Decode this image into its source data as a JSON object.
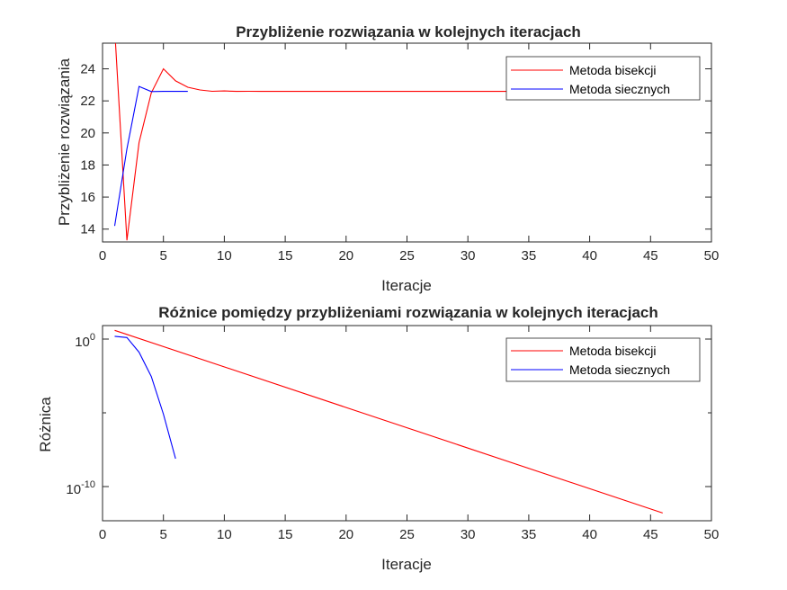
{
  "chart_data": [
    {
      "type": "line",
      "title": "Przybliżenie rozwiązania w kolejnych iteracjach",
      "xlabel": "Iteracje",
      "ylabel": "Przybliżenie rozwiązania",
      "xlim": [
        0,
        50
      ],
      "ylim": [
        13.2,
        25.6
      ],
      "yscale": "linear",
      "xticks": [
        "0",
        "5",
        "10",
        "15",
        "20",
        "25",
        "30",
        "35",
        "40",
        "45",
        "50"
      ],
      "yticks": [
        "14",
        "16",
        "18",
        "20",
        "22",
        "24"
      ],
      "grid": false,
      "legend_position": "top-right",
      "series": [
        {
          "name": "Metoda bisekcji",
          "color": "#ff0000",
          "x": [
            1,
            2,
            3,
            4,
            5,
            6,
            7,
            8,
            9,
            10,
            11,
            12,
            13,
            14,
            15,
            16,
            17,
            18,
            19,
            20,
            21,
            22,
            23,
            24,
            25,
            26,
            27,
            28,
            29,
            30,
            31,
            32,
            33,
            34,
            35,
            36,
            37,
            38,
            39,
            40,
            41,
            42,
            43,
            44,
            45,
            46
          ],
          "y": [
            26.5,
            13.3,
            19.4,
            22.5,
            24.0,
            23.25,
            22.85,
            22.68,
            22.6,
            22.62,
            22.59,
            22.6,
            22.59,
            22.59,
            22.59,
            22.59,
            22.59,
            22.59,
            22.59,
            22.59,
            22.59,
            22.59,
            22.59,
            22.59,
            22.59,
            22.59,
            22.59,
            22.59,
            22.59,
            22.59,
            22.59,
            22.59,
            22.59,
            22.59,
            22.59,
            22.59,
            22.59,
            22.59,
            22.59,
            22.59,
            22.59,
            22.59,
            22.59,
            22.59,
            22.59,
            22.59
          ]
        },
        {
          "name": "Metoda siecznych",
          "color": "#0000ff",
          "x": [
            1,
            2,
            3,
            4,
            5,
            6,
            7
          ],
          "y": [
            14.2,
            19.0,
            22.9,
            22.58,
            22.59,
            22.59,
            22.59
          ]
        }
      ]
    },
    {
      "type": "line",
      "title": "Różnice pomiędzy przybliżeniami rozwiązania w kolejnych iteracjach",
      "xlabel": "Iteracje",
      "ylabel": "Różnica",
      "xlim": [
        0,
        50
      ],
      "ylim": [
        1e-13,
        30
      ],
      "yscale": "log",
      "xticks": [
        "0",
        "5",
        "10",
        "15",
        "20",
        "25",
        "30",
        "35",
        "40",
        "45",
        "50"
      ],
      "grid": false,
      "legend_position": "top-right",
      "series": [
        {
          "name": "Metoda bisekcji",
          "color": "#ff0000",
          "x": [
            1,
            46
          ],
          "y": [
            13.2,
            3.75e-13
          ]
        },
        {
          "name": "Metoda siecznych",
          "color": "#0000ff",
          "x": [
            1,
            2,
            3,
            4,
            5,
            6
          ],
          "y": [
            4.8,
            3.9,
            0.32,
            0.005,
            8e-06,
            4e-09
          ]
        }
      ]
    }
  ]
}
